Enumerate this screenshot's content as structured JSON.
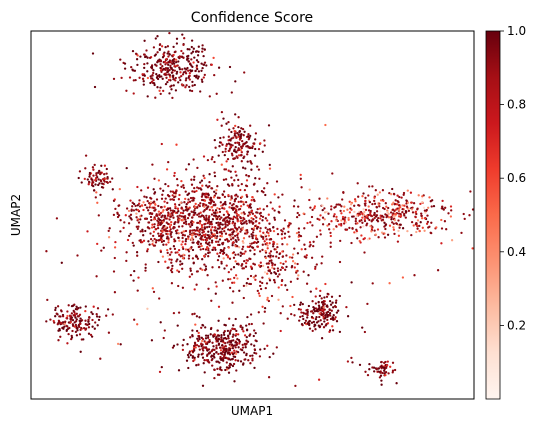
{
  "chart_data": {
    "type": "scatter",
    "title": "Confidence Score",
    "xlabel": "UMAP1",
    "ylabel": "UMAP2",
    "xticks": [],
    "yticks": [],
    "colorbar": {
      "colormap": "Reds",
      "range": [
        0.0,
        1.0
      ],
      "ticks": [
        "1.0",
        "0.8",
        "0.6",
        "0.4",
        "0.2"
      ],
      "colors": [
        "#fff5f0",
        "#fee0d2",
        "#fcbba1",
        "#fc9272",
        "#fb6a4a",
        "#ef3b2c",
        "#cb181d",
        "#a50f15",
        "#67000d"
      ]
    },
    "grid": false,
    "clusters": [
      {
        "cx": -2.5,
        "cy": 8.6,
        "sx": 1.6,
        "sy": 0.9,
        "n": 320,
        "color_mean": 0.97
      },
      {
        "cx": 0.4,
        "cy": 5.3,
        "sx": 0.9,
        "sy": 0.9,
        "n": 150,
        "color_mean": 0.9
      },
      {
        "cx": -5.6,
        "cy": 3.7,
        "sx": 0.6,
        "sy": 0.5,
        "n": 70,
        "color_mean": 0.92
      },
      {
        "cx": -0.8,
        "cy": 1.9,
        "sx": 2.6,
        "sy": 1.8,
        "n": 900,
        "color_mean": 0.78
      },
      {
        "cx": -3.0,
        "cy": 2.0,
        "sx": 1.4,
        "sy": 1.0,
        "n": 200,
        "color_mean": 0.7
      },
      {
        "cx": 6.6,
        "cy": 2.2,
        "sx": 2.5,
        "sy": 0.8,
        "n": 420,
        "color_mean": 0.55
      },
      {
        "cx": -6.6,
        "cy": -2.4,
        "sx": 0.9,
        "sy": 0.6,
        "n": 150,
        "color_mean": 0.95
      },
      {
        "cx": 3.9,
        "cy": -2.1,
        "sx": 0.7,
        "sy": 0.6,
        "n": 160,
        "color_mean": 0.97
      },
      {
        "cx": -0.3,
        "cy": -3.6,
        "sx": 1.3,
        "sy": 0.9,
        "n": 360,
        "color_mean": 0.97
      },
      {
        "cx": 6.5,
        "cy": -4.5,
        "sx": 0.5,
        "sy": 0.4,
        "n": 55,
        "color_mean": 0.95
      },
      {
        "cx": 1.6,
        "cy": 0.3,
        "sx": 1.6,
        "sy": 1.3,
        "n": 180,
        "color_mean": 0.6
      },
      {
        "cx": 0.0,
        "cy": 0.0,
        "sx": 5.5,
        "sy": 3.8,
        "n": 240,
        "color_mean": 0.75
      }
    ],
    "xlim": [
      -8.5,
      10.5
    ],
    "ylim": [
      -5.8,
      10.2
    ]
  }
}
